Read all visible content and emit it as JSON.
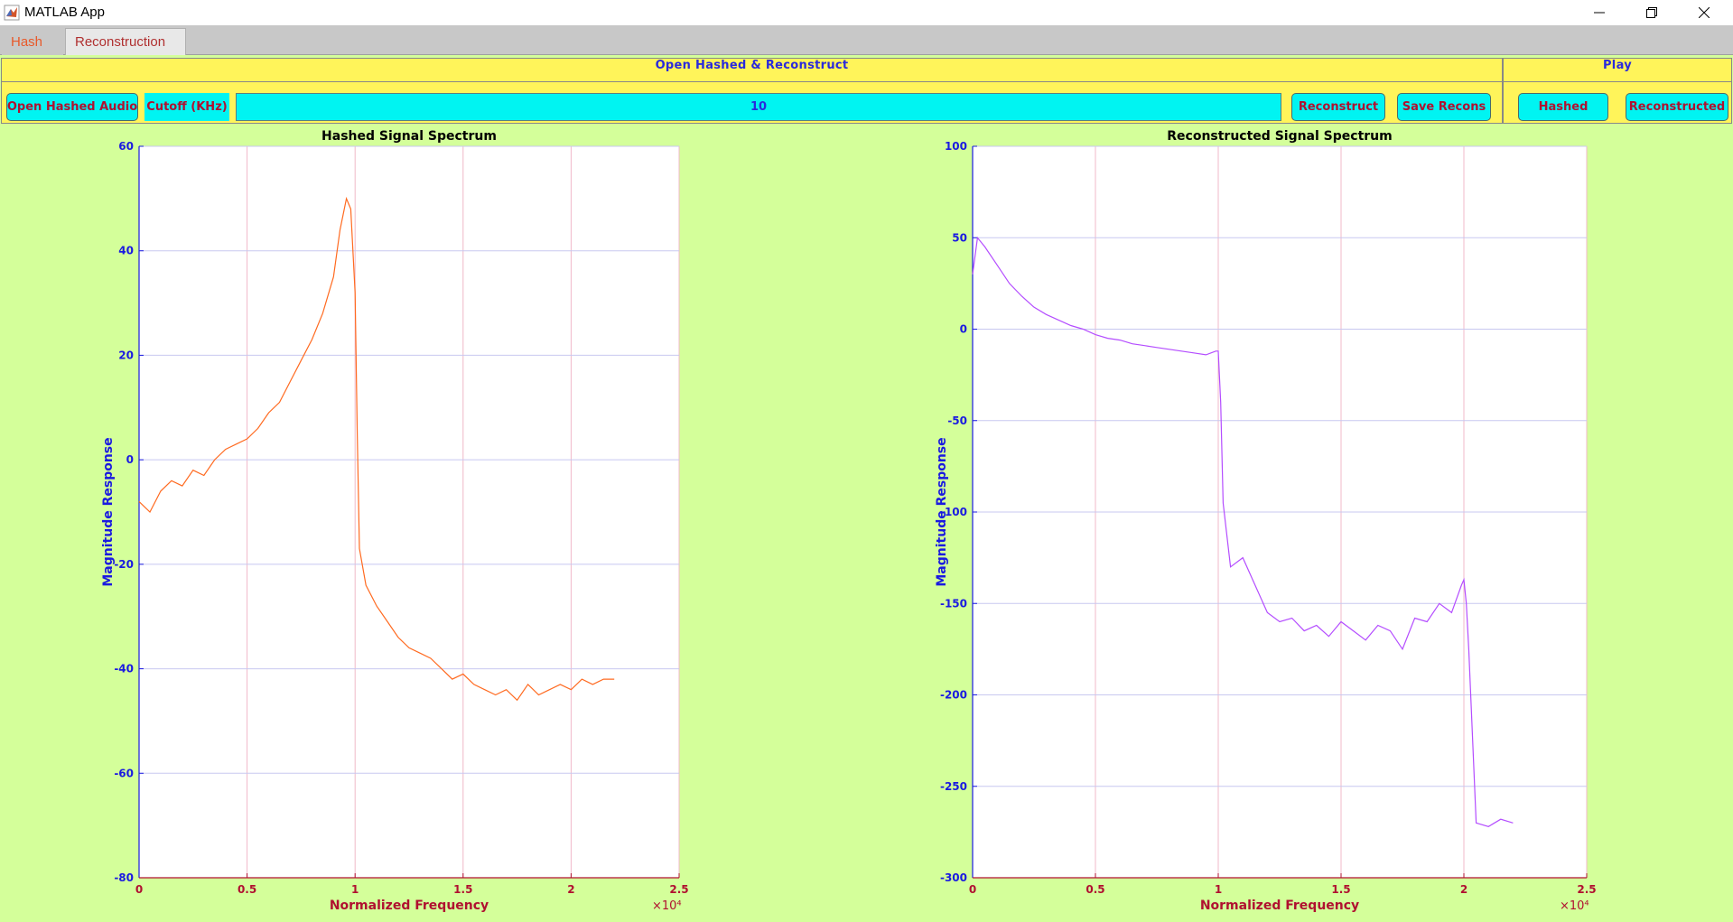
{
  "window": {
    "title": "MATLAB App"
  },
  "tabs": [
    {
      "label": "Hash"
    },
    {
      "label": "Reconstruction"
    }
  ],
  "main_panel": {
    "title": "Open Hashed & Reconstruct",
    "open_button": "Open Hashed Audio",
    "cutoff_label": "Cutoff (KHz)",
    "cutoff_value": "10",
    "reconstruct_button": "Reconstruct",
    "save_button": "Save Recons"
  },
  "play_panel": {
    "title": "Play",
    "hashed_button": "Hashed",
    "reconstructed_button": "Reconstructed"
  },
  "colors": {
    "background": "#d4ff9a",
    "panel": "#fff45a",
    "button": "#00f4f2",
    "hashed_line": "#ff6a20",
    "recon_line": "#b44dff",
    "axis_text": "#1a1ae0",
    "label_text": "#b01030"
  },
  "chart_data": [
    {
      "type": "line",
      "title": "Hashed Signal Spectrum",
      "xlabel": "Normalized Frequency",
      "ylabel": "Magnitude Response",
      "x_exponent": "×10⁴",
      "xlim": [
        0,
        2.5
      ],
      "ylim": [
        -80,
        60
      ],
      "xticks": [
        "0",
        "0.5",
        "1",
        "1.5",
        "2",
        "2.5"
      ],
      "yticks": [
        "-80",
        "-60",
        "-40",
        "-20",
        "0",
        "20",
        "40",
        "60"
      ],
      "grid": true,
      "series": [
        {
          "color": "#ff6a20",
          "x": [
            0,
            0.05,
            0.1,
            0.15,
            0.2,
            0.25,
            0.3,
            0.35,
            0.4,
            0.45,
            0.5,
            0.55,
            0.6,
            0.65,
            0.7,
            0.75,
            0.8,
            0.85,
            0.9,
            0.93,
            0.96,
            0.98,
            1.0,
            1.01,
            1.02,
            1.05,
            1.1,
            1.15,
            1.2,
            1.25,
            1.3,
            1.35,
            1.4,
            1.45,
            1.5,
            1.55,
            1.6,
            1.65,
            1.7,
            1.75,
            1.8,
            1.85,
            1.9,
            1.95,
            2.0,
            2.05,
            2.1,
            2.15,
            2.2
          ],
          "y": [
            -8,
            -10,
            -6,
            -4,
            -5,
            -2,
            -3,
            0,
            2,
            3,
            4,
            6,
            9,
            11,
            15,
            19,
            23,
            28,
            35,
            44,
            50,
            48,
            32,
            5,
            -17,
            -24,
            -28,
            -31,
            -34,
            -36,
            -37,
            -38,
            -40,
            -42,
            -41,
            -43,
            -44,
            -45,
            -44,
            -46,
            -43,
            -45,
            -44,
            -43,
            -44,
            -42,
            -43,
            -42,
            -42
          ]
        }
      ]
    },
    {
      "type": "line",
      "title": "Reconstructed Signal Spectrum",
      "xlabel": "Normalized Frequency",
      "ylabel": "Magnitude Response",
      "x_exponent": "×10⁴",
      "xlim": [
        0,
        2.5
      ],
      "ylim": [
        -300,
        100
      ],
      "xticks": [
        "0",
        "0.5",
        "1",
        "1.5",
        "2",
        "2.5"
      ],
      "yticks": [
        "-300",
        "-250",
        "-200",
        "-150",
        "-100",
        "-50",
        "0",
        "50",
        "100"
      ],
      "grid": true,
      "series": [
        {
          "color": "#b44dff",
          "x": [
            0,
            0.02,
            0.05,
            0.1,
            0.15,
            0.2,
            0.25,
            0.3,
            0.35,
            0.4,
            0.45,
            0.5,
            0.55,
            0.6,
            0.65,
            0.7,
            0.75,
            0.8,
            0.85,
            0.9,
            0.95,
            0.99,
            1.0,
            1.01,
            1.02,
            1.05,
            1.1,
            1.15,
            1.2,
            1.25,
            1.3,
            1.35,
            1.4,
            1.45,
            1.5,
            1.55,
            1.6,
            1.65,
            1.7,
            1.75,
            1.8,
            1.85,
            1.9,
            1.95,
            1.99,
            2.0,
            2.01,
            2.02,
            2.05,
            2.1,
            2.15,
            2.2
          ],
          "y": [
            30,
            50,
            45,
            35,
            25,
            18,
            12,
            8,
            5,
            2,
            0,
            -3,
            -5,
            -6,
            -8,
            -9,
            -10,
            -11,
            -12,
            -13,
            -14,
            -12,
            -12,
            -40,
            -95,
            -130,
            -125,
            -140,
            -155,
            -160,
            -158,
            -165,
            -162,
            -168,
            -160,
            -165,
            -170,
            -162,
            -165,
            -175,
            -158,
            -160,
            -150,
            -155,
            -140,
            -137,
            -150,
            -175,
            -270,
            -272,
            -268,
            -270
          ]
        }
      ]
    }
  ]
}
